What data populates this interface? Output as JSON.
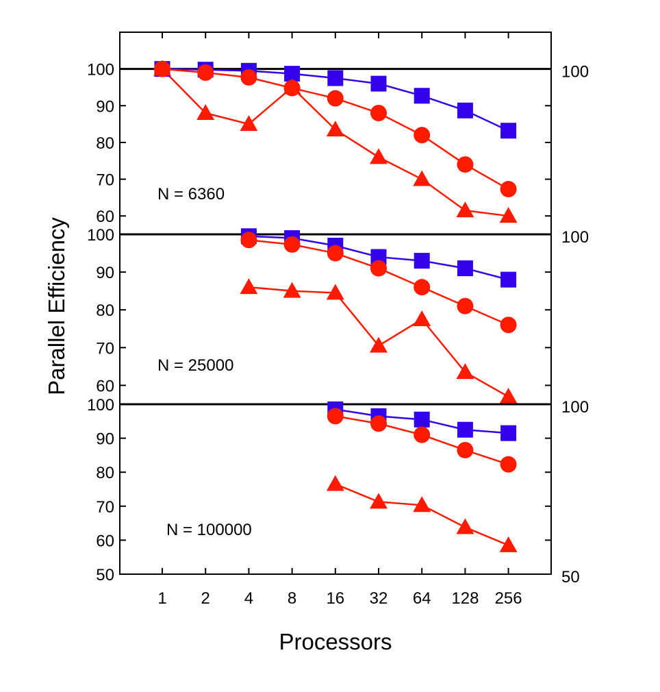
{
  "chart_data": {
    "type": "line",
    "xlabel": "Processors",
    "ylabel": "Parallel Efficiency",
    "x_categories": [
      "1",
      "2",
      "4",
      "8",
      "16",
      "32",
      "64",
      "128",
      "256"
    ],
    "colors": {
      "square": "#3300ee",
      "circle": "#ff1a00",
      "triangle": "#ff1a00"
    },
    "panels": [
      {
        "label": "N = 6360",
        "ylim": [
          55,
          110
        ],
        "yticks_left": [
          "60",
          "70",
          "80",
          "90",
          "100"
        ],
        "yticks_right": [
          "100"
        ],
        "series": [
          {
            "marker": "square",
            "values": [
              100,
              99.8,
              99.5,
              98.7,
              97.5,
              96,
              92.7,
              88.7,
              83.2
            ]
          },
          {
            "marker": "circle",
            "values": [
              100,
              99,
              97.7,
              94.8,
              92,
              88,
              82,
              74,
              67.3
            ]
          },
          {
            "marker": "triangle",
            "values": [
              100,
              88,
              85,
              95,
              83.5,
              76,
              70,
              61.5,
              60
            ]
          }
        ]
      },
      {
        "label": "N = 25000",
        "ylim": [
          55,
          100
        ],
        "yticks_left": [
          "60",
          "70",
          "80",
          "90",
          "100"
        ],
        "yticks_right": [
          "100"
        ],
        "series": [
          {
            "marker": "square",
            "values": [
              null,
              null,
              99.5,
              99,
              97,
              94,
              93,
              91,
              88
            ]
          },
          {
            "marker": "circle",
            "values": [
              null,
              null,
              98.5,
              97.3,
              95,
              91,
              86,
              81,
              76
            ]
          },
          {
            "marker": "triangle",
            "values": [
              null,
              null,
              86,
              85,
              84.5,
              70.5,
              77.5,
              63.5,
              57
            ]
          }
        ]
      },
      {
        "label": "N = 100000",
        "ylim": [
          50,
          100
        ],
        "yticks_left": [
          "50",
          "60",
          "70",
          "80",
          "90",
          "100"
        ],
        "yticks_right": [
          "50",
          "100"
        ],
        "series": [
          {
            "marker": "square",
            "values": [
              null,
              null,
              null,
              null,
              98.5,
              96.5,
              95.5,
              92.5,
              91.5
            ]
          },
          {
            "marker": "circle",
            "values": [
              null,
              null,
              null,
              null,
              96.5,
              94.3,
              91,
              86.5,
              82.3
            ]
          },
          {
            "marker": "triangle",
            "values": [
              null,
              null,
              null,
              null,
              76.5,
              71.3,
              70.3,
              63.8,
              58.5
            ]
          }
        ]
      }
    ]
  }
}
